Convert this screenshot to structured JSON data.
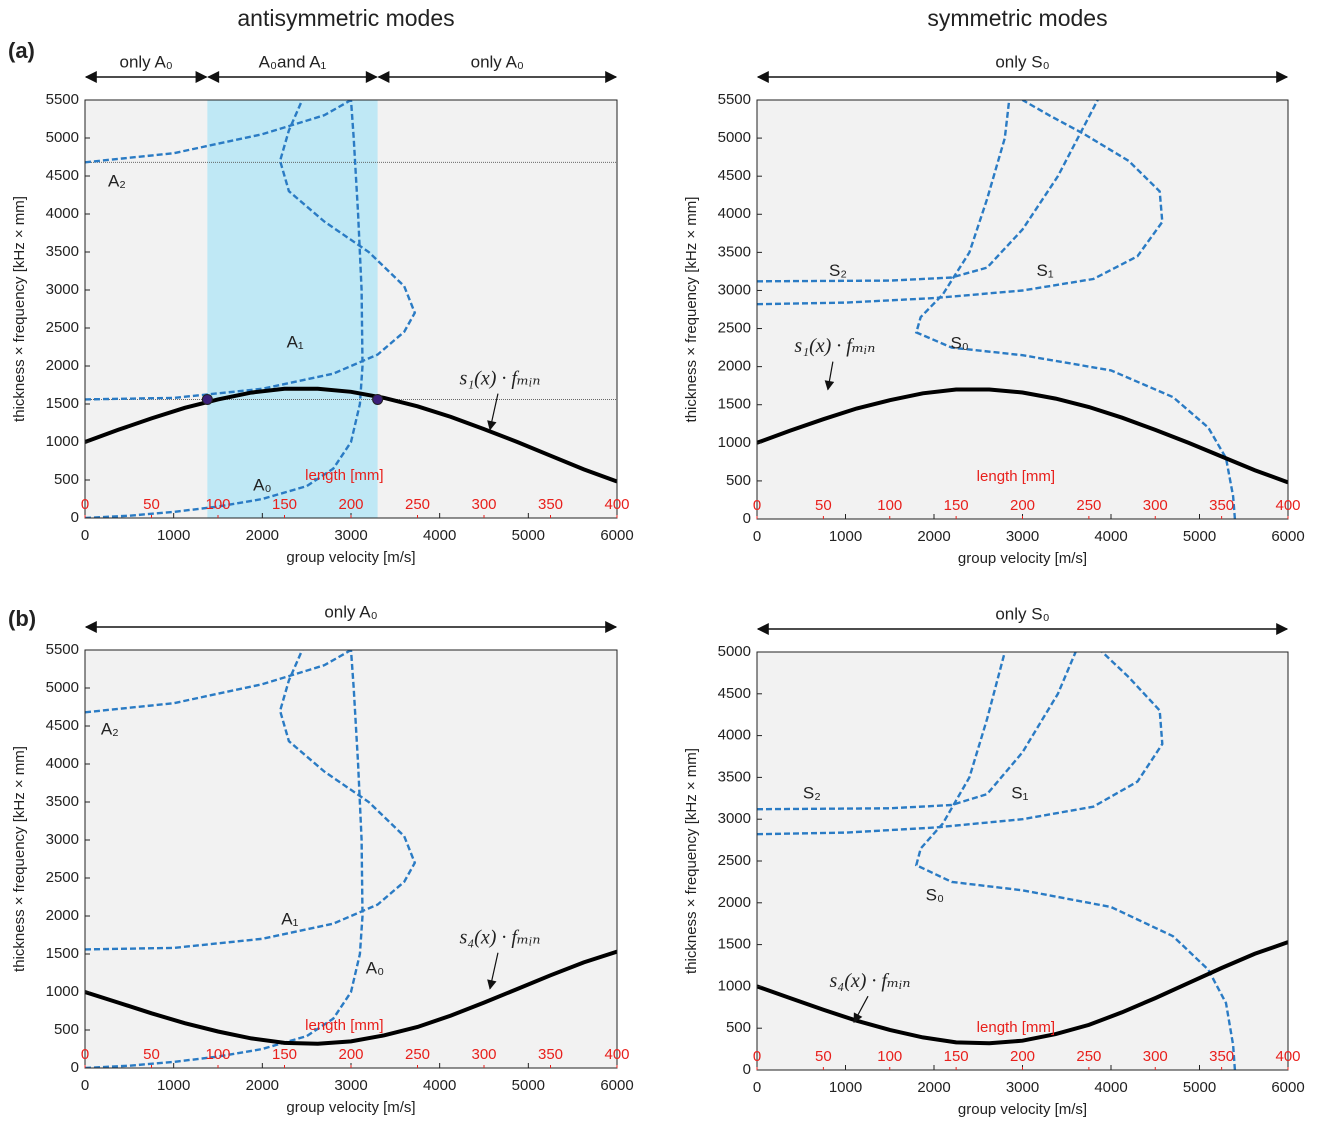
{
  "chart_data": [
    {
      "type": "line",
      "title": "antisymmetric modes",
      "panel_label": "(a)",
      "xlabel": "group velocity [m/s]",
      "ylabel": "thickness × frequency [kHz × mm]",
      "x2label": "length [mm]",
      "xlim": [
        0,
        6000
      ],
      "xticks": [
        0,
        1000,
        2000,
        3000,
        4000,
        5000,
        6000
      ],
      "ylim": [
        0,
        5500
      ],
      "yticks": [
        0,
        500,
        1000,
        1500,
        2000,
        2500,
        3000,
        3500,
        4000,
        4500,
        5000,
        5500
      ],
      "x2lim": [
        0,
        400
      ],
      "x2ticks": [
        0,
        50,
        100,
        150,
        200,
        250,
        300,
        350,
        400
      ],
      "spans": [
        {
          "label": "only A₀",
          "xlim": [
            0,
            1380
          ]
        },
        {
          "label": "A₀and A₁",
          "xlim": [
            1380,
            3300
          ]
        },
        {
          "label": "only A₀",
          "xlim": [
            3300,
            6000
          ]
        }
      ],
      "band": [
        1380,
        3300
      ],
      "band_color": "#bfe8f5",
      "ref_lines": [
        4680,
        1560
      ],
      "points": {
        "x": [
          1380,
          3300
        ],
        "values": [
          1560,
          1560
        ],
        "color": "#3b1f7a"
      },
      "series": [
        {
          "name": "A₀",
          "color": "#2a7bc4",
          "x": [
            0,
            500,
            1000,
            1500,
            2000,
            2500,
            2800,
            3000,
            3100,
            3130,
            3120,
            3080,
            3030,
            3000
          ],
          "values": [
            0,
            30,
            80,
            150,
            250,
            420,
            650,
            1000,
            1500,
            2000,
            3000,
            4000,
            5000,
            5500
          ]
        },
        {
          "name": "A₁",
          "color": "#2a7bc4",
          "x": [
            0,
            1000,
            2000,
            2800,
            3300,
            3600,
            3720,
            3600,
            3200,
            2700,
            2300,
            2200,
            2300,
            2450
          ],
          "values": [
            1560,
            1580,
            1700,
            1900,
            2150,
            2450,
            2700,
            3050,
            3500,
            3900,
            4300,
            4700,
            5100,
            5500
          ]
        },
        {
          "name": "A₂",
          "color": "#2a7bc4",
          "x": [
            0,
            1000,
            2000,
            2700,
            3000
          ],
          "values": [
            4680,
            4800,
            5050,
            5300,
            5500
          ]
        },
        {
          "name": "s₁(x) · fₘᵢₙ",
          "color": "#000000",
          "axis": "x2",
          "x": [
            0,
            25,
            50,
            75,
            100,
            125,
            150,
            175,
            200,
            225,
            250,
            275,
            300,
            325,
            350,
            375,
            400
          ],
          "values": [
            1000,
            1160,
            1310,
            1450,
            1560,
            1650,
            1700,
            1700,
            1660,
            1580,
            1470,
            1330,
            1170,
            1000,
            820,
            640,
            480
          ]
        }
      ]
    },
    {
      "type": "line",
      "title": "symmetric modes",
      "xlabel": "group velocity [m/s]",
      "ylabel": "thickness × frequency [kHz × mm]",
      "x2label": "length [mm]",
      "xlim": [
        0,
        6000
      ],
      "xticks": [
        0,
        1000,
        2000,
        3000,
        4000,
        5000,
        6000
      ],
      "ylim": [
        0,
        5500
      ],
      "yticks": [
        0,
        500,
        1000,
        1500,
        2000,
        2500,
        3000,
        3500,
        4000,
        4500,
        5000,
        5500
      ],
      "x2lim": [
        0,
        400
      ],
      "x2ticks": [
        0,
        50,
        100,
        150,
        200,
        250,
        300,
        350,
        400
      ],
      "spans": [
        {
          "label": "only S₀",
          "xlim": [
            0,
            6000
          ]
        }
      ],
      "series": [
        {
          "name": "S₀",
          "color": "#2a7bc4",
          "x": [
            5400,
            5380,
            5300,
            5100,
            4700,
            4000,
            3000,
            2200,
            1800,
            1850,
            2100,
            2400,
            2600,
            2800,
            2850
          ],
          "values": [
            0,
            300,
            800,
            1200,
            1600,
            1950,
            2150,
            2250,
            2450,
            2650,
            2950,
            3500,
            4200,
            5000,
            5500
          ]
        },
        {
          "name": "S₁",
          "color": "#2a7bc4",
          "x": [
            0,
            1000,
            2000,
            3000,
            3800,
            4300,
            4580,
            4550,
            4200,
            3700,
            3300,
            3000
          ],
          "values": [
            2820,
            2840,
            2900,
            3000,
            3150,
            3450,
            3900,
            4300,
            4700,
            5050,
            5300,
            5500
          ]
        },
        {
          "name": "S₂",
          "color": "#2a7bc4",
          "x": [
            0,
            1500,
            2200,
            2600,
            3000,
            3400,
            3850
          ],
          "values": [
            3120,
            3130,
            3170,
            3300,
            3800,
            4500,
            5500
          ]
        },
        {
          "name": "s₁(x) · fₘᵢₙ",
          "color": "#000000",
          "axis": "x2",
          "x": [
            0,
            25,
            50,
            75,
            100,
            125,
            150,
            175,
            200,
            225,
            250,
            275,
            300,
            325,
            350,
            375,
            400
          ],
          "values": [
            1000,
            1160,
            1310,
            1450,
            1560,
            1650,
            1700,
            1700,
            1660,
            1580,
            1470,
            1330,
            1170,
            1000,
            820,
            640,
            480
          ]
        }
      ]
    },
    {
      "type": "line",
      "panel_label": "(b)",
      "xlabel": "group velocity [m/s]",
      "ylabel": "thickness × frequency [kHz × mm]",
      "x2label": "length [mm]",
      "xlim": [
        0,
        6000
      ],
      "xticks": [
        0,
        1000,
        2000,
        3000,
        4000,
        5000,
        6000
      ],
      "ylim": [
        0,
        5500
      ],
      "yticks": [
        0,
        500,
        1000,
        1500,
        2000,
        2500,
        3000,
        3500,
        4000,
        4500,
        5000,
        5500
      ],
      "x2lim": [
        0,
        400
      ],
      "x2ticks": [
        0,
        50,
        100,
        150,
        200,
        250,
        300,
        350,
        400
      ],
      "spans": [
        {
          "label": "only A₀",
          "xlim": [
            0,
            6000
          ]
        }
      ],
      "series": [
        {
          "name": "A₀",
          "color": "#2a7bc4",
          "x": [
            0,
            500,
            1000,
            1500,
            2000,
            2500,
            2800,
            3000,
            3100,
            3130,
            3120,
            3080,
            3030,
            3000
          ],
          "values": [
            0,
            30,
            80,
            150,
            250,
            420,
            650,
            1000,
            1500,
            2000,
            3000,
            4000,
            5000,
            5500
          ]
        },
        {
          "name": "A₁",
          "color": "#2a7bc4",
          "x": [
            0,
            1000,
            2000,
            2800,
            3300,
            3600,
            3720,
            3600,
            3200,
            2700,
            2300,
            2200,
            2300,
            2450
          ],
          "values": [
            1560,
            1580,
            1700,
            1900,
            2150,
            2450,
            2700,
            3050,
            3500,
            3900,
            4300,
            4700,
            5100,
            5500
          ]
        },
        {
          "name": "A₂",
          "color": "#2a7bc4",
          "x": [
            0,
            1000,
            2000,
            2700,
            3000
          ],
          "values": [
            4680,
            4800,
            5050,
            5300,
            5500
          ]
        },
        {
          "name": "s₄(x) · fₘᵢₙ",
          "color": "#000000",
          "axis": "x2",
          "x": [
            0,
            25,
            50,
            75,
            100,
            125,
            150,
            175,
            200,
            225,
            250,
            275,
            300,
            325,
            350,
            375,
            400
          ],
          "values": [
            1000,
            860,
            720,
            590,
            480,
            390,
            330,
            320,
            350,
            430,
            540,
            690,
            860,
            1040,
            1220,
            1390,
            1530
          ]
        }
      ]
    },
    {
      "type": "line",
      "xlabel": "group velocity [m/s]",
      "ylabel": "thickness × frequency [kHz × mm]",
      "x2label": "length [mm]",
      "xlim": [
        0,
        6000
      ],
      "xticks": [
        0,
        1000,
        2000,
        3000,
        4000,
        5000,
        6000
      ],
      "ylim": [
        0,
        5000
      ],
      "yticks": [
        0,
        500,
        1000,
        1500,
        2000,
        2500,
        3000,
        3500,
        4000,
        4500,
        5000
      ],
      "x2lim": [
        0,
        400
      ],
      "x2ticks": [
        0,
        50,
        100,
        150,
        200,
        250,
        300,
        350,
        400
      ],
      "spans": [
        {
          "label": "only S₀",
          "xlim": [
            0,
            6000
          ]
        }
      ],
      "series": [
        {
          "name": "S₀",
          "color": "#2a7bc4",
          "x": [
            5400,
            5380,
            5300,
            5100,
            4700,
            4000,
            3000,
            2200,
            1800,
            1850,
            2100,
            2400,
            2600,
            2800
          ],
          "values": [
            0,
            300,
            800,
            1200,
            1600,
            1950,
            2150,
            2250,
            2450,
            2650,
            2950,
            3500,
            4200,
            5000
          ]
        },
        {
          "name": "S₁",
          "color": "#2a7bc4",
          "x": [
            0,
            1000,
            2000,
            3000,
            3800,
            4300,
            4580,
            4550,
            4200,
            3900
          ],
          "values": [
            2820,
            2840,
            2900,
            3000,
            3150,
            3450,
            3900,
            4300,
            4700,
            5000
          ]
        },
        {
          "name": "S₂",
          "color": "#2a7bc4",
          "x": [
            0,
            1500,
            2200,
            2600,
            3000,
            3400,
            3600
          ],
          "values": [
            3120,
            3130,
            3170,
            3300,
            3800,
            4500,
            5000
          ]
        },
        {
          "name": "s₄(x) · fₘᵢₙ",
          "color": "#000000",
          "axis": "x2",
          "x": [
            0,
            25,
            50,
            75,
            100,
            125,
            150,
            175,
            200,
            225,
            250,
            275,
            300,
            325,
            350,
            375,
            400
          ],
          "values": [
            1000,
            860,
            720,
            590,
            480,
            390,
            330,
            320,
            350,
            430,
            540,
            690,
            860,
            1040,
            1220,
            1390,
            1530
          ]
        }
      ]
    }
  ]
}
